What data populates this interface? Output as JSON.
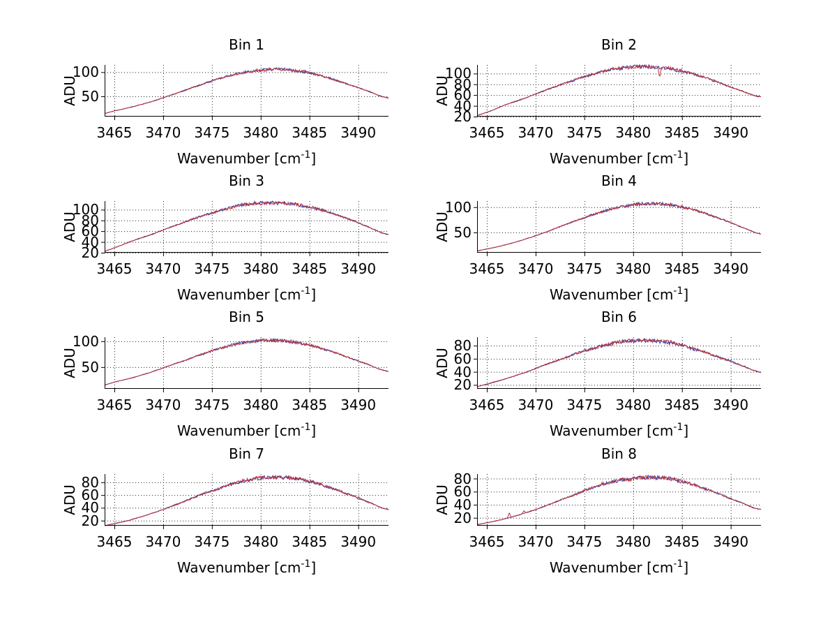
{
  "figure": {
    "background": "#ffffff",
    "ylabel": "ADU",
    "xlabel_full": "Wavenumber [cm-1]",
    "xlabel_prefix": "Wavenumber [cm",
    "xlabel_sup": "-1",
    "xlabel_suffix": "]",
    "colors": {
      "trace_primary": "#bb2f35",
      "trace_secondary": "#3340a8",
      "axis": "#000000",
      "grid": "#222222",
      "text": "#000000"
    }
  },
  "chart_data": [
    {
      "type": "line",
      "title": "Bin 1",
      "xlabel": "Wavenumber [cm-1]",
      "ylabel": "ADU",
      "legend": null,
      "grid": true,
      "x": [
        3463,
        3465,
        3467,
        3469,
        3471,
        3473,
        3475,
        3477,
        3479,
        3481,
        3483,
        3485,
        3487,
        3489,
        3491,
        3493
      ],
      "y": [
        10,
        19.7,
        28.9,
        40.4,
        53.7,
        67.9,
        81.7,
        93.5,
        102,
        105.8,
        104.5,
        98.3,
        87.9,
        74.9,
        60.7,
        46.9
      ],
      "xticks": [
        3465,
        3470,
        3475,
        3480,
        3485,
        3490
      ],
      "xlim": [
        3464,
        3493.1
      ],
      "yticks": [
        50,
        100
      ],
      "ylim": [
        8,
        115
      ],
      "spikes": []
    },
    {
      "type": "line",
      "title": "Bin 2",
      "xlabel": "Wavenumber [cm-1]",
      "ylabel": "ADU",
      "legend": null,
      "grid": true,
      "x": [
        3463,
        3465,
        3467,
        3469,
        3471,
        3473,
        3475,
        3477,
        3479,
        3481,
        3483,
        3485,
        3487,
        3489,
        3491,
        3493
      ],
      "y": [
        18,
        28,
        42.4,
        55,
        68.5,
        82,
        94.4,
        104.3,
        110.8,
        113,
        110.8,
        104.3,
        94.4,
        82,
        68.5,
        57
      ],
      "xticks": [
        3465,
        3470,
        3475,
        3480,
        3485,
        3490
      ],
      "xlim": [
        3464,
        3493.1
      ],
      "yticks": [
        20,
        40,
        60,
        80,
        100
      ],
      "ylim": [
        20,
        116
      ],
      "spikes": [
        {
          "x": 3482.7,
          "dv": -16
        }
      ]
    },
    {
      "type": "line",
      "title": "Bin 3",
      "xlabel": "Wavenumber [cm-1]",
      "ylabel": "ADU",
      "legend": null,
      "grid": true,
      "x": [
        3463,
        3465,
        3467,
        3469,
        3471,
        3473,
        3475,
        3477,
        3479,
        3481,
        3483,
        3485,
        3487,
        3489,
        3491,
        3493
      ],
      "y": [
        18,
        29,
        43,
        55.5,
        69,
        82,
        94,
        104,
        110.5,
        112.5,
        111,
        105,
        95,
        82.5,
        68,
        54
      ],
      "xticks": [
        3465,
        3470,
        3475,
        3480,
        3485,
        3490
      ],
      "xlim": [
        3464,
        3493.1
      ],
      "yticks": [
        20,
        40,
        60,
        80,
        100
      ],
      "ylim": [
        20,
        116
      ],
      "spikes": []
    },
    {
      "type": "line",
      "title": "Bin 4",
      "xlabel": "Wavenumber [cm-1]",
      "ylabel": "ADU",
      "legend": null,
      "grid": true,
      "x": [
        3463,
        3465,
        3467,
        3469,
        3471,
        3473,
        3475,
        3477,
        3479,
        3481,
        3483,
        3485,
        3487,
        3489,
        3491,
        3493
      ],
      "y": [
        10.9,
        17.3,
        26,
        37.1,
        50.4,
        64.9,
        79.4,
        92.2,
        101.7,
        106.6,
        106,
        100.2,
        89.9,
        76.6,
        62,
        47.6
      ],
      "xticks": [
        3465,
        3470,
        3475,
        3480,
        3485,
        3490
      ],
      "xlim": [
        3464,
        3493.1
      ],
      "yticks": [
        50,
        100
      ],
      "ylim": [
        10,
        112
      ],
      "spikes": []
    },
    {
      "type": "line",
      "title": "Bin 5",
      "xlabel": "Wavenumber [cm-1]",
      "ylabel": "ADU",
      "legend": null,
      "grid": true,
      "x": [
        3463,
        3465,
        3467,
        3469,
        3471,
        3473,
        3475,
        3477,
        3479,
        3481,
        3483,
        3485,
        3487,
        3489,
        3491,
        3493
      ],
      "y": [
        11,
        21,
        30.4,
        41.9,
        55.1,
        68.7,
        81.7,
        92.4,
        99.5,
        102,
        99.5,
        92.4,
        81.7,
        68.7,
        55.1,
        41.9
      ],
      "xticks": [
        3465,
        3470,
        3475,
        3480,
        3485,
        3490
      ],
      "xlim": [
        3464,
        3493.1
      ],
      "yticks": [
        50,
        100
      ],
      "ylim": [
        8,
        108
      ],
      "spikes": []
    },
    {
      "type": "line",
      "title": "Bin 6",
      "xlabel": "Wavenumber [cm-1]",
      "ylabel": "ADU",
      "legend": null,
      "grid": true,
      "x": [
        3463,
        3465,
        3467,
        3469,
        3471,
        3473,
        3475,
        3477,
        3479,
        3481,
        3483,
        3485,
        3487,
        3489,
        3491,
        3493
      ],
      "y": [
        14.6,
        21.3,
        29.7,
        39.6,
        50.6,
        61.7,
        72.1,
        80.5,
        86.1,
        88,
        86.1,
        80.5,
        72.1,
        61.7,
        50.6,
        39.6
      ],
      "xticks": [
        3465,
        3470,
        3475,
        3480,
        3485,
        3490
      ],
      "xlim": [
        3464,
        3493.1
      ],
      "yticks": [
        20,
        40,
        60,
        80
      ],
      "ylim": [
        14,
        93
      ],
      "spikes": []
    },
    {
      "type": "line",
      "title": "Bin 7",
      "xlabel": "Wavenumber [cm-1]",
      "ylabel": "ADU",
      "legend": null,
      "grid": true,
      "x": [
        3463,
        3465,
        3467,
        3469,
        3471,
        3473,
        3475,
        3477,
        3479,
        3481,
        3483,
        3485,
        3487,
        3489,
        3491,
        3493
      ],
      "y": [
        9.7,
        15.2,
        22.6,
        32.1,
        43.2,
        55.2,
        67,
        77.2,
        84.5,
        87.9,
        86.7,
        81.3,
        72.4,
        61.2,
        49.1,
        37.5
      ],
      "xticks": [
        3465,
        3470,
        3475,
        3480,
        3485,
        3490
      ],
      "xlim": [
        3464,
        3493.1
      ],
      "yticks": [
        20,
        40,
        60,
        80
      ],
      "ylim": [
        12,
        93
      ],
      "spikes": []
    },
    {
      "type": "line",
      "title": "Bin 8",
      "xlabel": "Wavenumber [cm-1]",
      "ylabel": "ADU",
      "legend": null,
      "grid": true,
      "x": [
        3463,
        3465,
        3467,
        3469,
        3471,
        3473,
        3475,
        3477,
        3479,
        3481,
        3483,
        3485,
        3487,
        3489,
        3491,
        3493
      ],
      "y": [
        7.7,
        12.5,
        19.1,
        27.8,
        38.2,
        49.7,
        61.2,
        71.3,
        78.5,
        81.9,
        80.7,
        75.3,
        66.5,
        55.6,
        43.9,
        32.8
      ],
      "xticks": [
        3465,
        3470,
        3475,
        3480,
        3485,
        3490
      ],
      "xlim": [
        3464,
        3493.1
      ],
      "yticks": [
        20,
        40,
        60,
        80
      ],
      "ylim": [
        8,
        87
      ],
      "spikes": [
        {
          "x": 3467.3,
          "dv": 7
        },
        {
          "x": 3468.8,
          "dv": 4
        }
      ]
    }
  ]
}
